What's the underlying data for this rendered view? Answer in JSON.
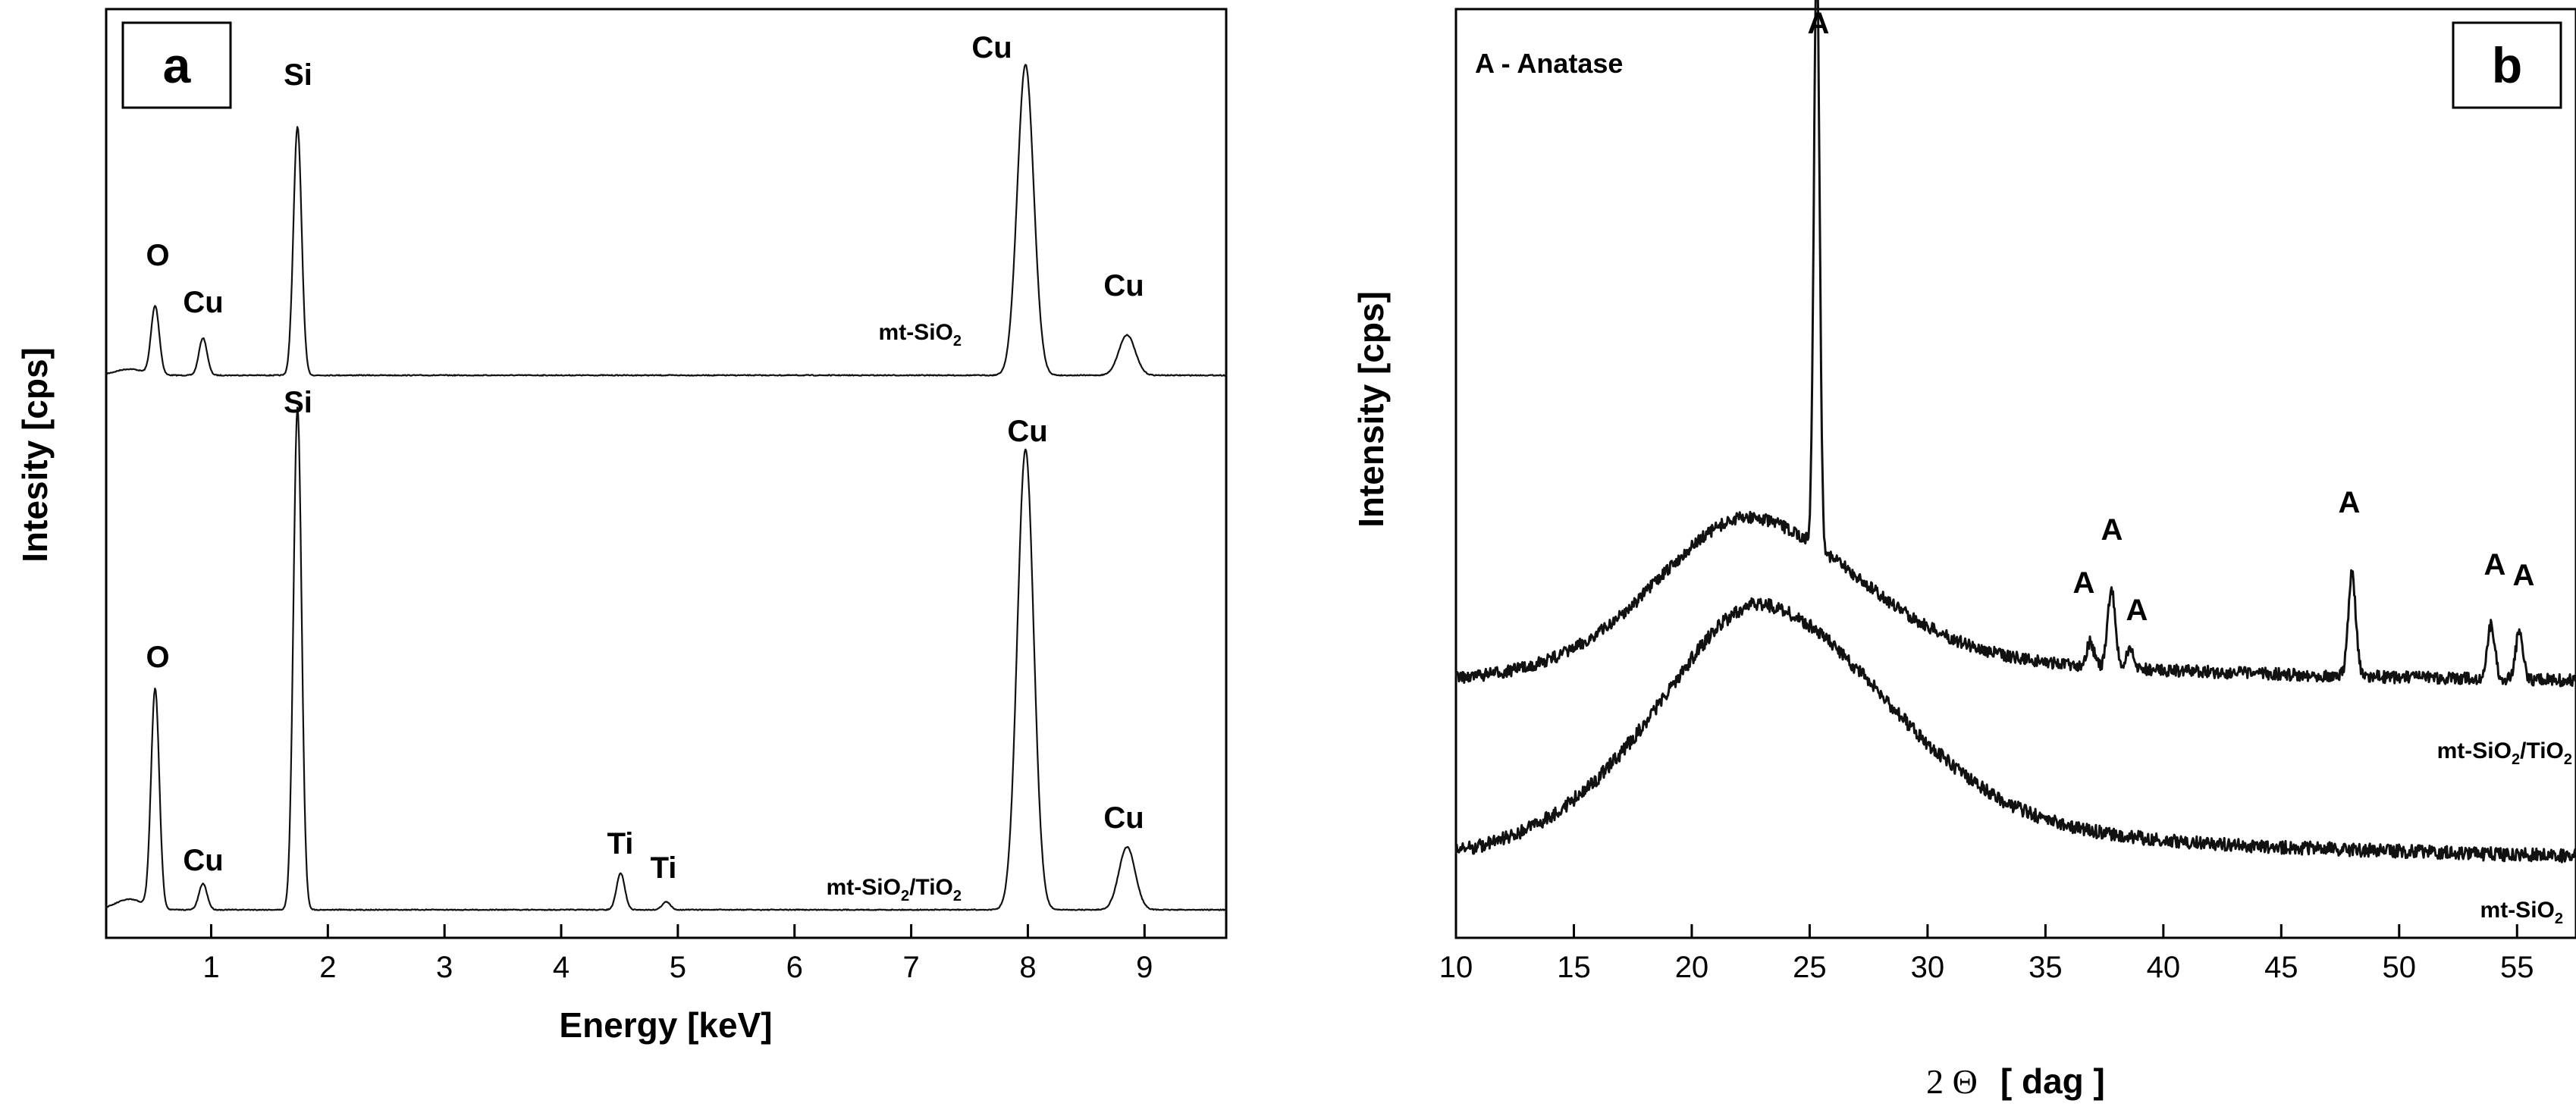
{
  "chart_data": [
    {
      "id": "a",
      "type": "line",
      "panel_label": "a",
      "title": "",
      "xlabel": "Energy [keV]",
      "ylabel": "Intesity [cps]",
      "xlim": [
        0.1,
        9.7
      ],
      "x_ticks": [
        1,
        2,
        3,
        4,
        5,
        6,
        7,
        8,
        9
      ],
      "x_tick_labels": [
        "1",
        "2",
        "3",
        "4",
        "5",
        "6",
        "7",
        "8",
        "9"
      ],
      "y_ticks_visible": false,
      "series": [
        {
          "name": "mt-SiO2",
          "label_main": "mt-SiO",
          "label_sub": "2",
          "peaks": [
            {
              "label": "O",
              "x": 0.52,
              "rel_height": 0.22
            },
            {
              "label": "Cu",
              "x": 0.93,
              "rel_height": 0.12
            },
            {
              "label": "Si",
              "x": 1.74,
              "rel_height": 0.8
            },
            {
              "label": "Cu",
              "x": 7.98,
              "rel_height": 1.0
            },
            {
              "label": "Cu",
              "x": 8.85,
              "rel_height": 0.13
            }
          ]
        },
        {
          "name": "mt-SiO2/TiO2",
          "label_main": "mt-SiO",
          "label_sub": "2",
          "label_main2": "/TiO",
          "label_sub2": "2",
          "peaks": [
            {
              "label": "O",
              "x": 0.52,
              "rel_height": 0.42
            },
            {
              "label": "Cu",
              "x": 0.93,
              "rel_height": 0.05
            },
            {
              "label": "Si",
              "x": 1.74,
              "rel_height": 0.96
            },
            {
              "label": "Ti",
              "x": 4.51,
              "rel_height": 0.07
            },
            {
              "label": "Ti",
              "x": 4.9,
              "rel_height": 0.015
            },
            {
              "label": "Cu",
              "x": 7.98,
              "rel_height": 0.88
            },
            {
              "label": "Cu",
              "x": 8.85,
              "rel_height": 0.12
            }
          ]
        }
      ]
    },
    {
      "id": "b",
      "type": "line",
      "panel_label": "b",
      "title": "",
      "annotation": "A - Anatase",
      "xlabel_symbol": "2 Θ",
      "xlabel_unit": "[ dag ]",
      "ylabel": "Intensity [cps]",
      "xlim": [
        10,
        57.5
      ],
      "x_ticks": [
        10,
        15,
        20,
        25,
        30,
        35,
        40,
        45,
        50,
        55
      ],
      "x_tick_labels": [
        "10",
        "15",
        "20",
        "25",
        "30",
        "35",
        "40",
        "45",
        "50",
        "55"
      ],
      "y_ticks_visible": false,
      "series": [
        {
          "name": "mt-SiO2/TiO2",
          "label_main": "mt-SiO",
          "label_sub": "2",
          "label_main2": "/TiO",
          "label_sub2": "2",
          "broad_hump_center": 22.5,
          "peaks": [
            {
              "label": "A",
              "x": 25.3,
              "rel_height": 1.0
            },
            {
              "label": "A",
              "x": 36.9,
              "rel_height": 0.04
            },
            {
              "label": "A",
              "x": 37.8,
              "rel_height": 0.13
            },
            {
              "label": "A",
              "x": 38.6,
              "rel_height": 0.03
            },
            {
              "label": "A",
              "x": 48.0,
              "rel_height": 0.17
            },
            {
              "label": "A",
              "x": 53.9,
              "rel_height": 0.09
            },
            {
              "label": "A",
              "x": 55.1,
              "rel_height": 0.08
            }
          ]
        },
        {
          "name": "mt-SiO2",
          "label_main": "mt-SiO",
          "label_sub": "2",
          "broad_hump_center": 23.0,
          "peaks": []
        }
      ]
    }
  ]
}
